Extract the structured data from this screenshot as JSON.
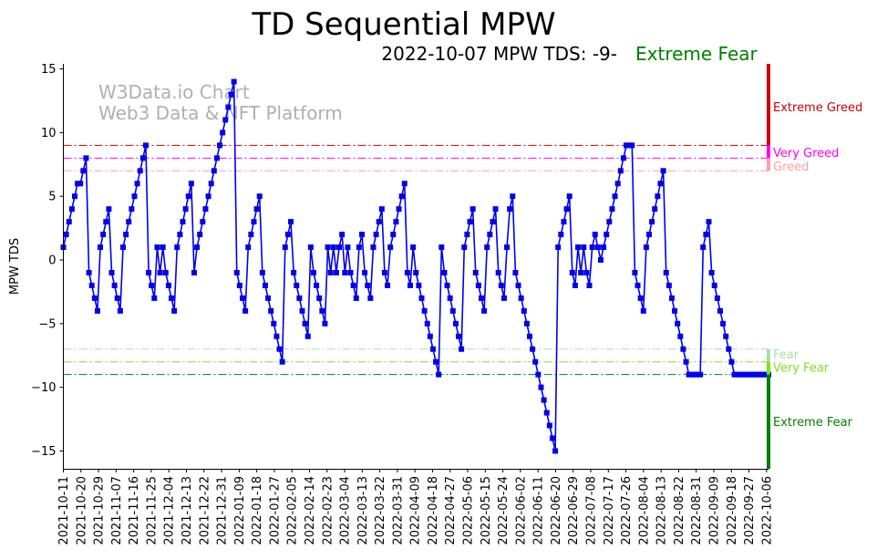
{
  "chart_data": {
    "type": "line",
    "title": "TD Sequential MPW",
    "subtitle": "2022-10-07 MPW TDS: -9-",
    "status": "Extreme Fear",
    "ylabel": "MPW TDS",
    "xlabel": "",
    "ylim": [
      -16.4,
      15.4
    ],
    "yticks": [
      -15,
      -10,
      -5,
      0,
      5,
      10,
      15
    ],
    "xticks": [
      "2021-10-11",
      "2021-10-20",
      "2021-10-29",
      "2021-11-07",
      "2021-11-16",
      "2021-11-25",
      "2021-12-04",
      "2021-12-13",
      "2021-12-22",
      "2021-12-31",
      "2022-01-09",
      "2022-01-18",
      "2022-01-27",
      "2022-02-05",
      "2022-02-14",
      "2022-02-23",
      "2022-03-04",
      "2022-03-13",
      "2022-03-22",
      "2022-03-31",
      "2022-04-09",
      "2022-04-18",
      "2022-04-27",
      "2022-05-06",
      "2022-05-15",
      "2022-05-24",
      "2022-06-02",
      "2022-06-11",
      "2022-06-20",
      "2022-06-29",
      "2022-07-08",
      "2022-07-17",
      "2022-07-26",
      "2022-08-04",
      "2022-08-13",
      "2022-08-22",
      "2022-08-31",
      "2022-09-09",
      "2022-09-18",
      "2022-09-27",
      "2022-10-06"
    ],
    "x_start": "2021-10-11",
    "x_end": "2022-10-07",
    "watermark": [
      "W3Data.io Chart",
      "Web3 Data & NFT Platform"
    ],
    "thresholds": [
      {
        "name": "Extreme Greed",
        "value": 9,
        "color": "#cc0000"
      },
      {
        "name": "Very Greed",
        "value": 8,
        "color": "#ff00ff"
      },
      {
        "name": "Greed",
        "value": 7,
        "color": "#ffa0a0"
      },
      {
        "name": "Fear",
        "value": -7,
        "color": "#a8e0a8"
      },
      {
        "name": "Very Fear",
        "value": -8,
        "color": "#80e020"
      },
      {
        "name": "Extreme Fear",
        "value": -9,
        "color": "#008000"
      }
    ],
    "series": [
      {
        "name": "MPW TDS",
        "color": "#0000ee",
        "values": [
          1,
          2,
          3,
          4,
          5,
          6,
          6,
          7,
          8,
          -1,
          -2,
          -3,
          -4,
          1,
          2,
          3,
          4,
          -1,
          -2,
          -3,
          -4,
          1,
          2,
          3,
          4,
          5,
          6,
          7,
          8,
          9,
          -1,
          -2,
          -3,
          1,
          -1,
          1,
          -1,
          -2,
          -3,
          -4,
          1,
          2,
          3,
          4,
          5,
          6,
          -1,
          1,
          2,
          3,
          4,
          5,
          6,
          7,
          8,
          9,
          10,
          11,
          12,
          13,
          14,
          -1,
          -2,
          -3,
          -4,
          1,
          2,
          3,
          4,
          5,
          -1,
          -2,
          -3,
          -4,
          -5,
          -6,
          -7,
          -8,
          1,
          2,
          3,
          -1,
          -2,
          -3,
          -4,
          -5,
          -6,
          1,
          -1,
          -2,
          -3,
          -4,
          -5,
          1,
          -1,
          1,
          -1,
          1,
          2,
          -1,
          1,
          -1,
          -2,
          -3,
          1,
          2,
          -1,
          -2,
          -3,
          1,
          2,
          3,
          4,
          -1,
          -2,
          1,
          2,
          3,
          4,
          5,
          6,
          -1,
          -2,
          1,
          -1,
          -2,
          -3,
          -4,
          -5,
          -6,
          -7,
          -8,
          -9,
          1,
          -1,
          -2,
          -3,
          -4,
          -5,
          -6,
          -7,
          1,
          2,
          3,
          4,
          -1,
          -2,
          -3,
          -4,
          1,
          2,
          3,
          4,
          -1,
          -2,
          -3,
          1,
          4,
          5,
          -1,
          -2,
          -3,
          -4,
          -5,
          -6,
          -7,
          -8,
          -9,
          -10,
          -11,
          -12,
          -13,
          -14,
          -15,
          1,
          2,
          3,
          4,
          5,
          -1,
          -2,
          1,
          -1,
          1,
          -1,
          -2,
          1,
          2,
          1,
          0,
          1,
          2,
          3,
          4,
          5,
          6,
          7,
          8,
          9,
          9,
          9,
          -1,
          -2,
          -3,
          -4,
          1,
          2,
          3,
          4,
          5,
          6,
          7,
          -1,
          -2,
          -3,
          -4,
          -5,
          -6,
          -7,
          -8,
          -9,
          -9,
          -9,
          -9,
          -9,
          1,
          2,
          3,
          -1,
          -2,
          -3,
          -4,
          -5,
          -6,
          -7,
          -8,
          -9,
          -9,
          -9,
          -9,
          -9,
          -9,
          -9,
          -9,
          -9,
          -9,
          -9,
          -9,
          -9
        ]
      }
    ]
  }
}
